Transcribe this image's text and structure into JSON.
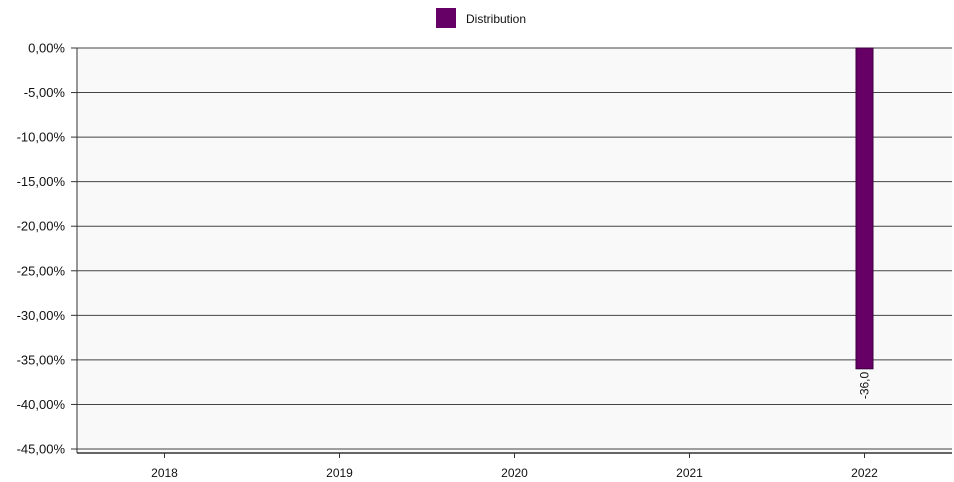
{
  "chart_data": {
    "type": "bar",
    "categories": [
      "2018",
      "2019",
      "2020",
      "2021",
      "2022"
    ],
    "series": [
      {
        "name": "Distribution",
        "values": [
          null,
          null,
          null,
          null,
          -36.0
        ],
        "data_labels": [
          "",
          "",
          "",
          "",
          "-36,0"
        ]
      }
    ],
    "ylim": [
      -45,
      0
    ],
    "yticks": [
      0,
      -5,
      -10,
      -15,
      -20,
      -25,
      -30,
      -35,
      -40,
      -45
    ],
    "ytick_labels": [
      "0,00%",
      "-5,00%",
      "-10,00%",
      "-15,00%",
      "-20,00%",
      "-25,00%",
      "-30,00%",
      "-35,00%",
      "-40,00%",
      "-45,00%"
    ],
    "grid": true,
    "legend_position": "top-center",
    "colors": {
      "series": "#660066",
      "plot_background": "#f9f9f9",
      "grid": "#444444"
    }
  }
}
